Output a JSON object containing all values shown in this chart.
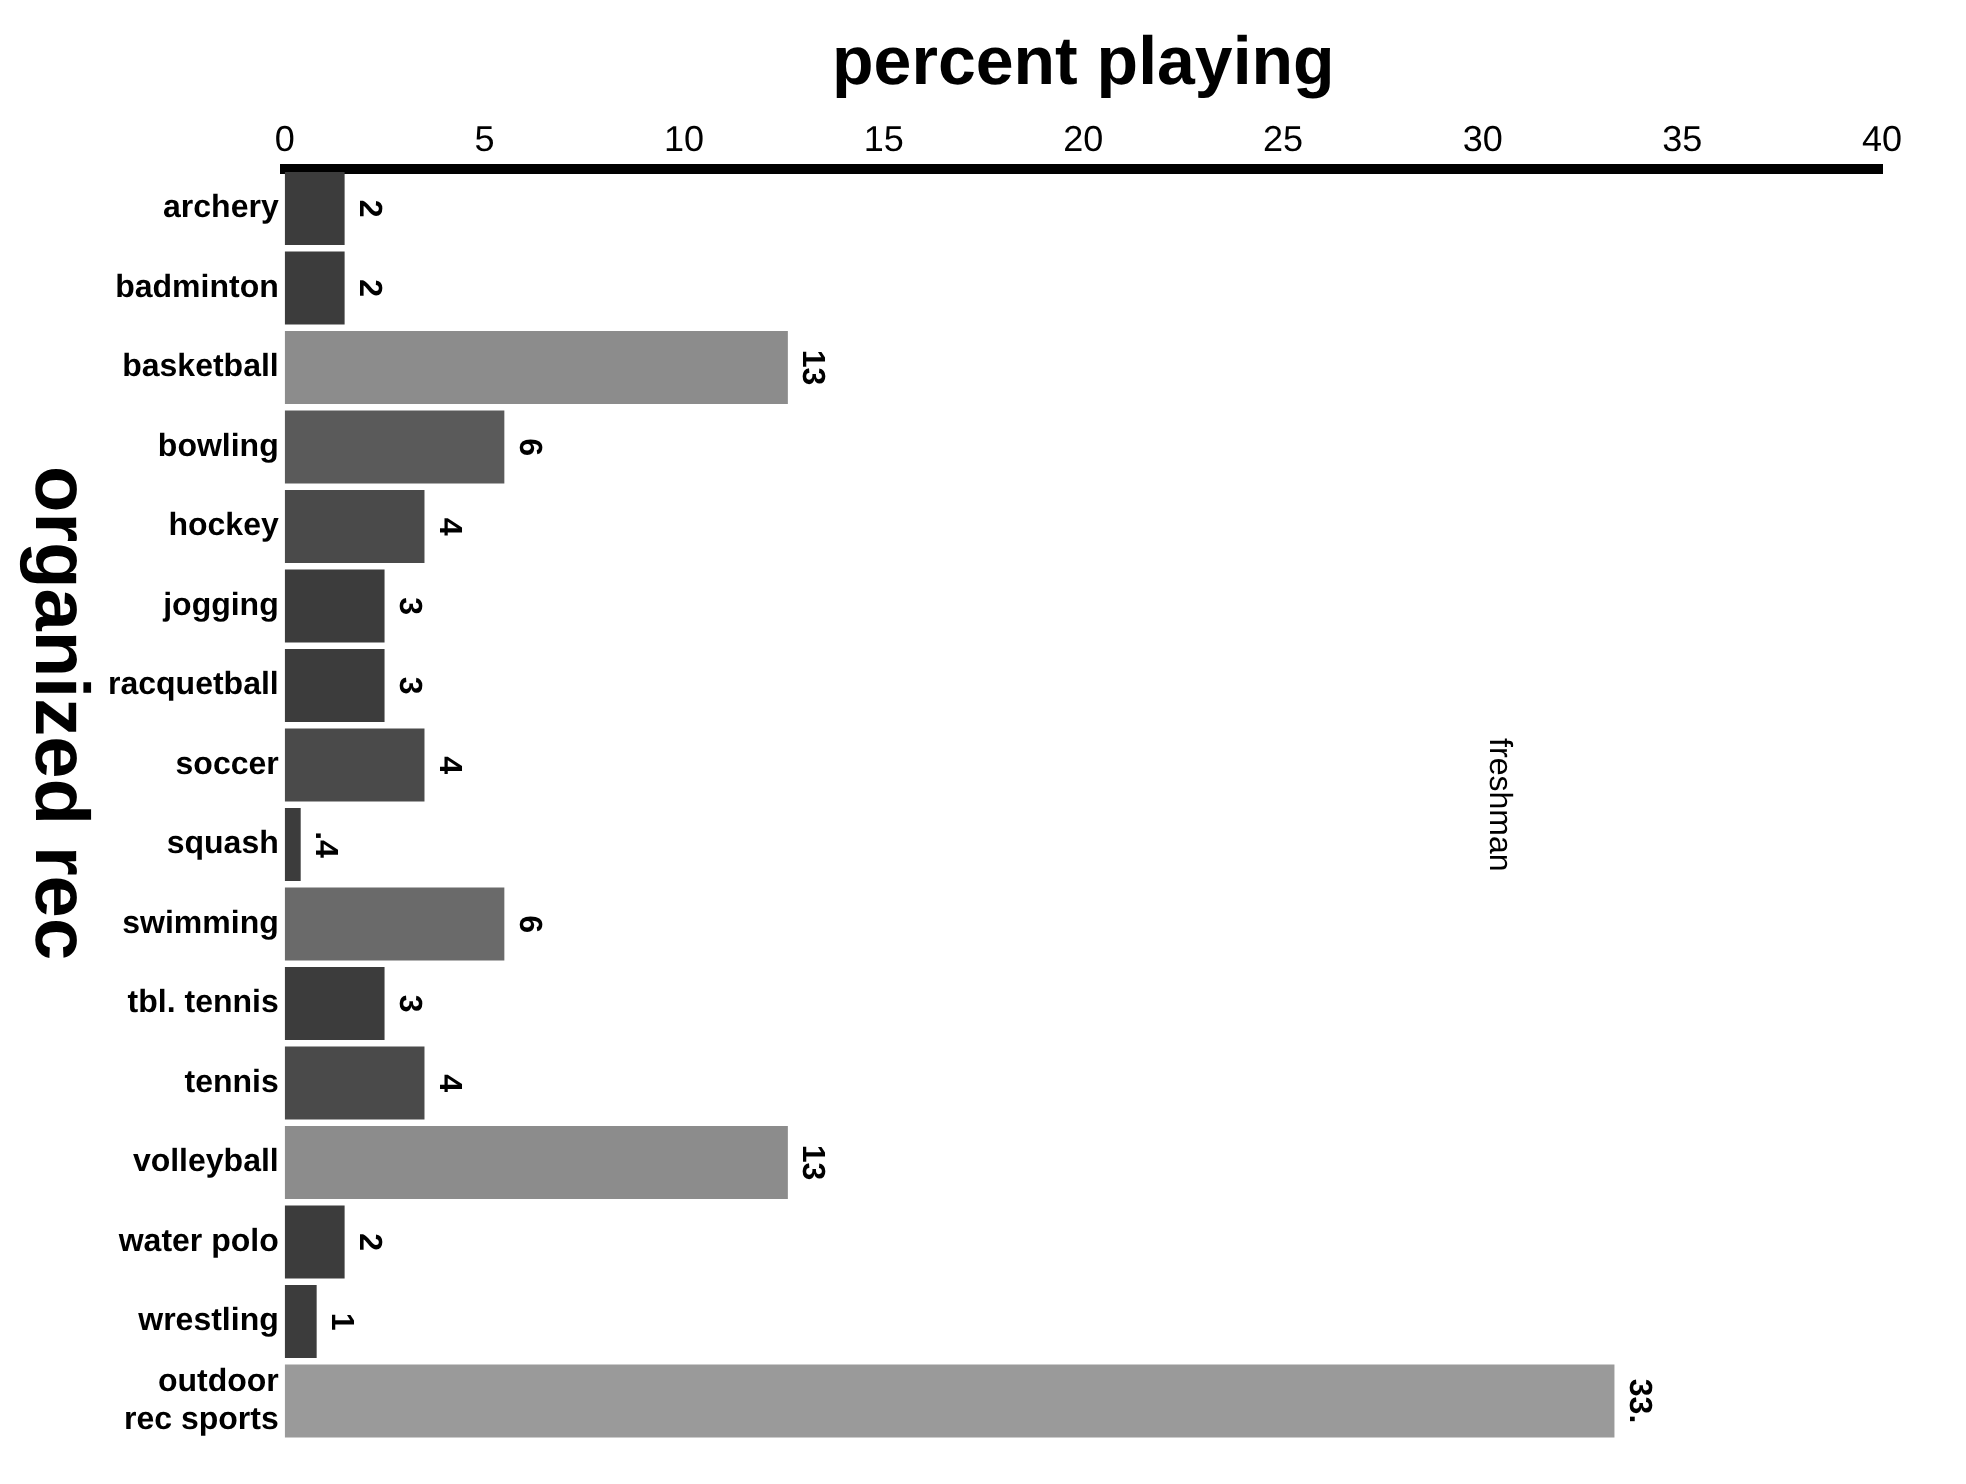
{
  "chart_data": {
    "type": "bar",
    "orientation": "horizontal",
    "xlabel": "percent playing",
    "ylabel": "organized rec",
    "categories": [
      "archery",
      "badminton",
      "basketball",
      "bowling",
      "hockey",
      "jogging",
      "racquetball",
      "soccer",
      "squash",
      "swimming",
      "tbl. tennis",
      "tennis",
      "volleyball",
      "water polo",
      "wrestling",
      "outdoor rec sports"
    ],
    "values": [
      1.5,
      1.5,
      12.6,
      5.5,
      3.5,
      2.5,
      2.5,
      3.5,
      0.4,
      5.5,
      2.5,
      3.5,
      12.6,
      1.5,
      0.8,
      33.3
    ],
    "value_labels": [
      "2",
      "2",
      "13",
      "6",
      "4",
      "3",
      "3",
      "4",
      ".4",
      "6",
      "3",
      "4",
      "13",
      "2",
      "1",
      "33."
    ],
    "colors": [
      "#3c3c3c",
      "#3c3c3c",
      "#8c8c8c",
      "#5a5a5a",
      "#4a4a4a",
      "#3c3c3c",
      "#3c3c3c",
      "#4a4a4a",
      "#3c3c3c",
      "#6a6a6a",
      "#3c3c3c",
      "#4a4a4a",
      "#8c8c8c",
      "#3c3c3c",
      "#3c3c3c",
      "#9a9a9a"
    ],
    "xlim": [
      0,
      40
    ],
    "xticks": [
      0,
      5,
      10,
      15,
      20,
      25,
      30,
      35,
      40
    ],
    "annotations": [
      "freshman"
    ],
    "grid": false,
    "legend": false
  }
}
